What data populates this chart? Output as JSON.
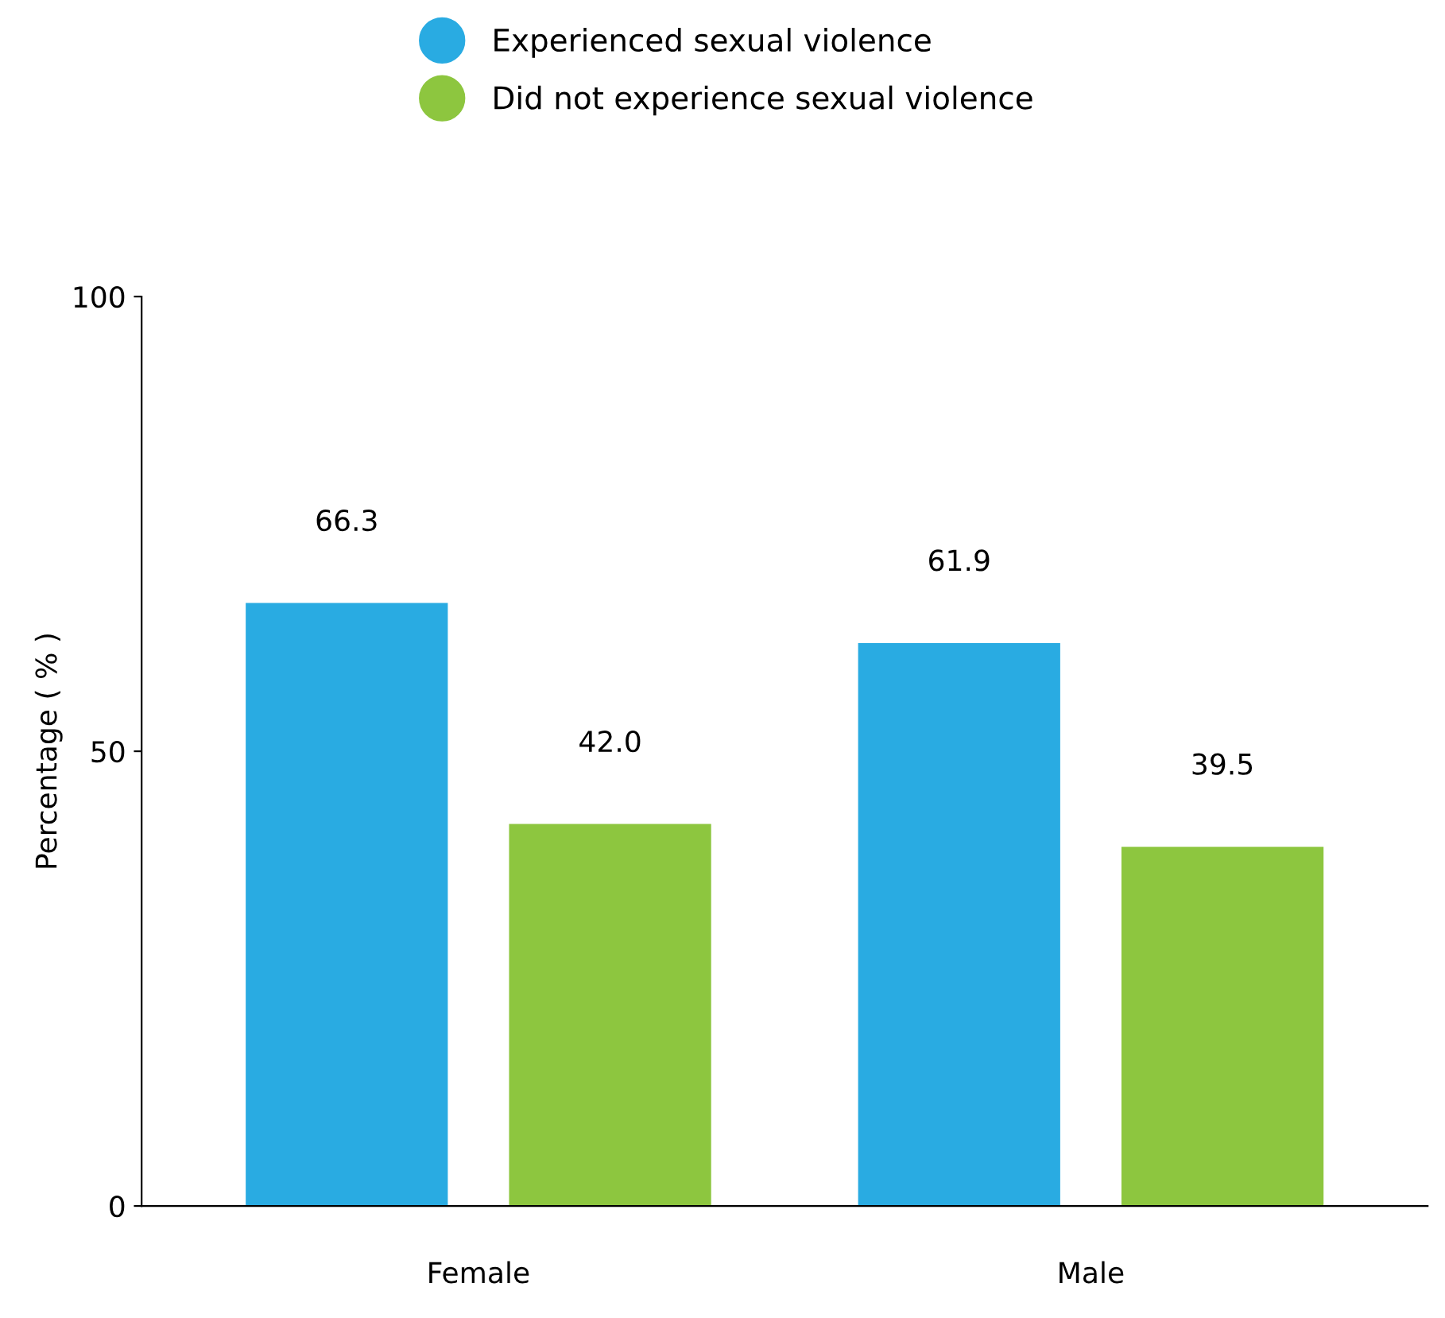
{
  "chart_data": {
    "type": "bar",
    "ylabel": "Percentage ( % )",
    "categories": [
      "Female",
      "Male"
    ],
    "series": [
      {
        "name": "Experienced sexual violence",
        "color": "#29abe2",
        "values": [
          66.3,
          61.9
        ],
        "value_labels": [
          "66.3",
          "61.9"
        ]
      },
      {
        "name": "Did not experience sexual violence",
        "color": "#8dc63f",
        "values": [
          42.0,
          39.5
        ],
        "value_labels": [
          "42.0",
          "39.5"
        ]
      }
    ],
    "ylim": [
      0,
      100
    ],
    "yticks": [
      0,
      50,
      100
    ],
    "grid": false,
    "legend": "top"
  }
}
